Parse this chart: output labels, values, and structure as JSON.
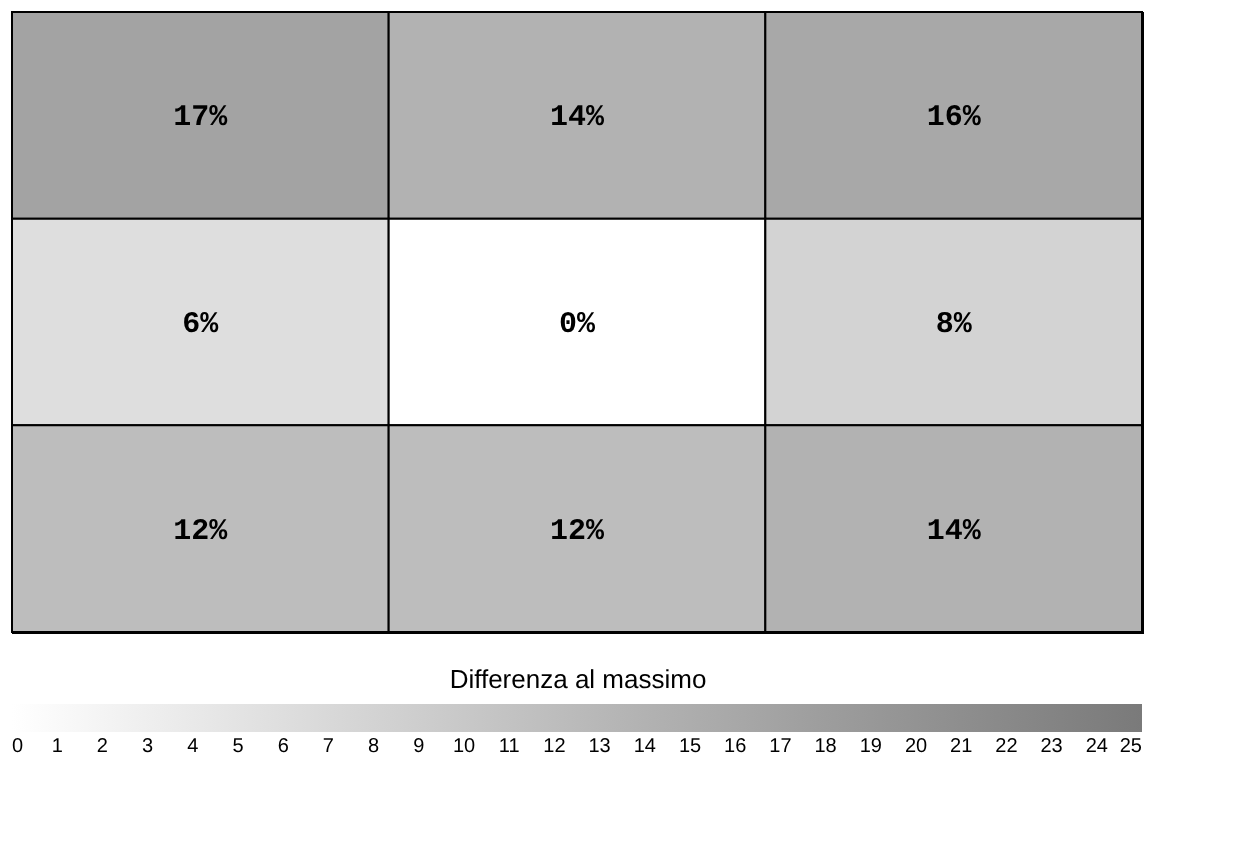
{
  "chart_data": {
    "type": "heatmap",
    "clabel": "Differenza al massimo",
    "categories": [
      null,
      null,
      null
    ],
    "y_categories": [
      null,
      null,
      null
    ],
    "cells": [
      [
        17,
        14,
        16
      ],
      [
        6,
        0,
        8
      ],
      [
        12,
        12,
        14
      ]
    ],
    "cell_labels": [
      [
        "17%",
        "14%",
        "16%"
      ],
      [
        "6%",
        "0%",
        "8%"
      ],
      [
        "12%",
        "12%",
        "14%"
      ]
    ],
    "clim": [
      0,
      25
    ],
    "cticks": [
      0,
      1,
      2,
      3,
      4,
      5,
      6,
      7,
      8,
      9,
      10,
      11,
      12,
      13,
      14,
      15,
      16,
      17,
      18,
      19,
      20,
      21,
      22,
      23,
      24,
      25
    ]
  }
}
